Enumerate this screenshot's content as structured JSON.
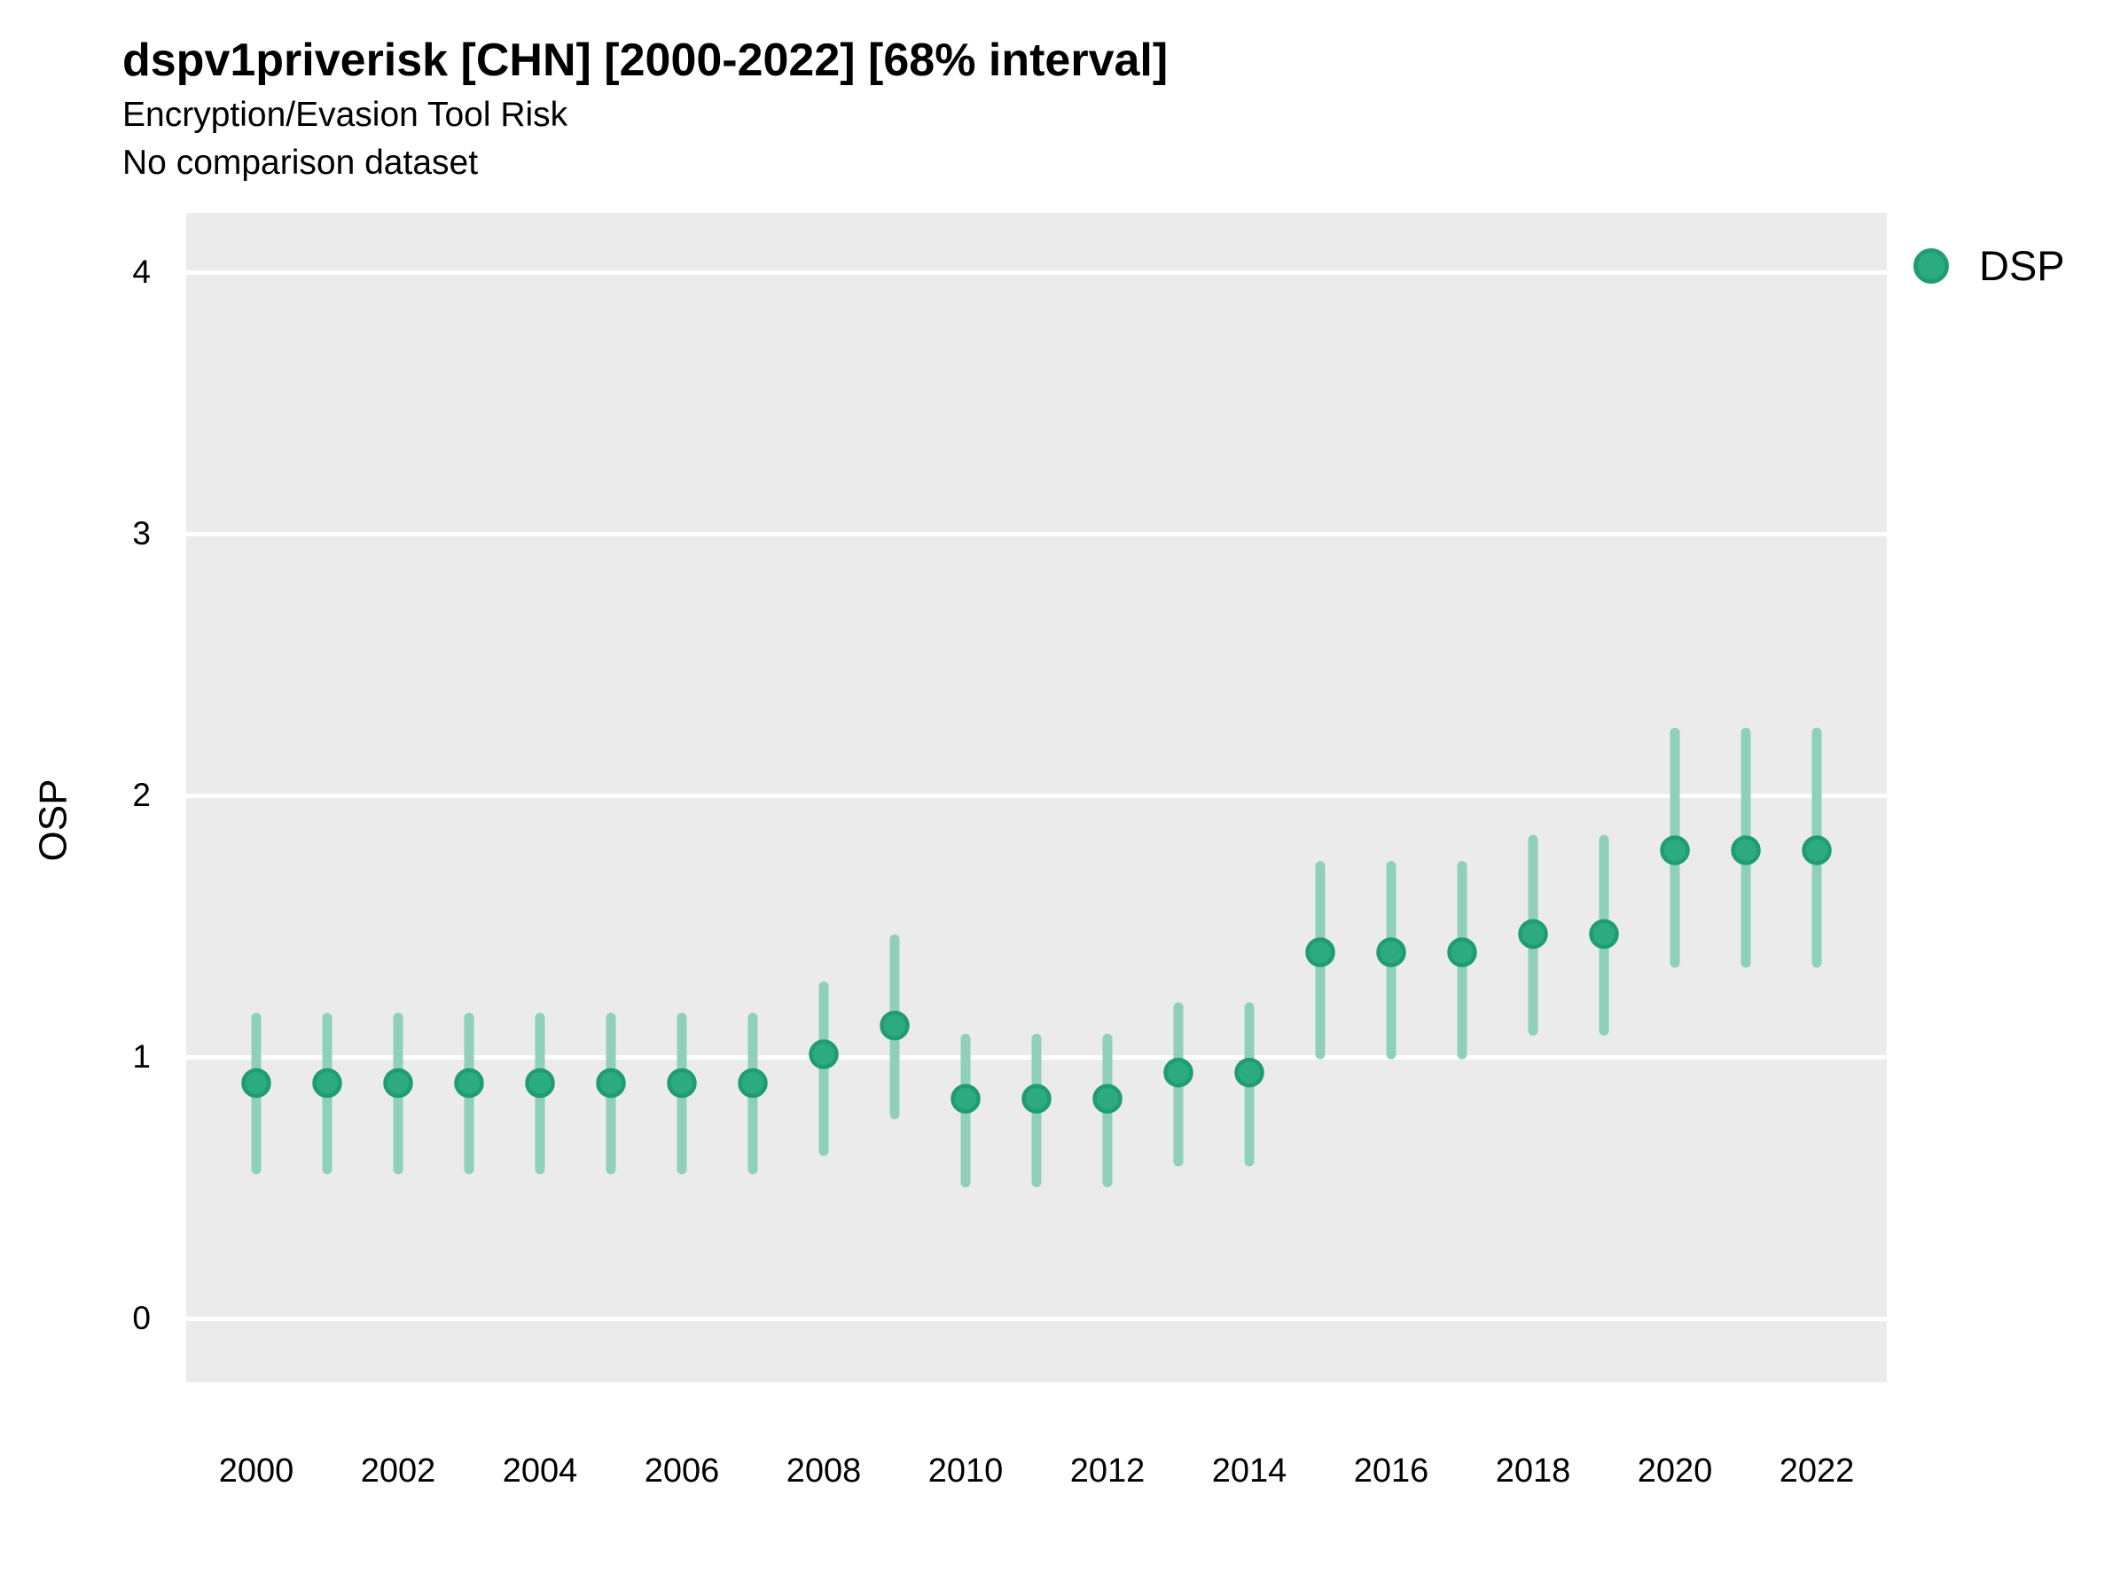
{
  "title": "dspv1priverisk [CHN] [2000-2022] [68% interval]",
  "subtitle": "Encryption/Evasion Tool Risk",
  "subtitle2": "No comparison dataset",
  "ylabel": "OSP",
  "legend": {
    "label": "DSP"
  },
  "colors": {
    "panel_bg": "#ebebeb",
    "gridline": "#ffffff",
    "point_fill": "#2caa80",
    "point_stroke": "#1f9c74",
    "interval_line": "#8ed0b9",
    "text": "#000000"
  },
  "chart_data": {
    "type": "scatter",
    "title": "dspv1priverisk [CHN] [2000-2022] [68% interval]",
    "subtitle": "Encryption/Evasion Tool Risk",
    "note": "No comparison dataset",
    "xlabel": "",
    "ylabel": "OSP",
    "interval": "68%",
    "grid": "major-horizontal",
    "legend_position": "right",
    "ylim": [
      -0.24,
      4.23
    ],
    "yticks": [
      0,
      1,
      2,
      3,
      4
    ],
    "xticks": [
      2000,
      2002,
      2004,
      2006,
      2008,
      2010,
      2012,
      2014,
      2016,
      2018,
      2020,
      2022
    ],
    "x": [
      2000,
      2001,
      2002,
      2003,
      2004,
      2005,
      2006,
      2007,
      2008,
      2009,
      2010,
      2011,
      2012,
      2013,
      2014,
      2015,
      2016,
      2017,
      2018,
      2019,
      2020,
      2021,
      2022
    ],
    "series": [
      {
        "name": "DSP",
        "values": [
          0.9,
          0.9,
          0.9,
          0.9,
          0.9,
          0.9,
          0.9,
          0.9,
          1.01,
          1.12,
          0.84,
          0.84,
          0.84,
          0.94,
          0.94,
          1.4,
          1.4,
          1.4,
          1.47,
          1.47,
          1.79,
          1.79,
          1.79
        ],
        "interval_low": [
          0.57,
          0.57,
          0.57,
          0.57,
          0.57,
          0.57,
          0.57,
          0.57,
          0.64,
          0.78,
          0.52,
          0.52,
          0.52,
          0.6,
          0.6,
          1.01,
          1.01,
          1.01,
          1.1,
          1.1,
          1.36,
          1.36,
          1.36
        ],
        "interval_high": [
          1.15,
          1.15,
          1.15,
          1.15,
          1.15,
          1.15,
          1.15,
          1.15,
          1.27,
          1.45,
          1.07,
          1.07,
          1.07,
          1.19,
          1.19,
          1.73,
          1.73,
          1.73,
          1.83,
          1.83,
          2.24,
          2.24,
          2.24
        ]
      }
    ]
  }
}
